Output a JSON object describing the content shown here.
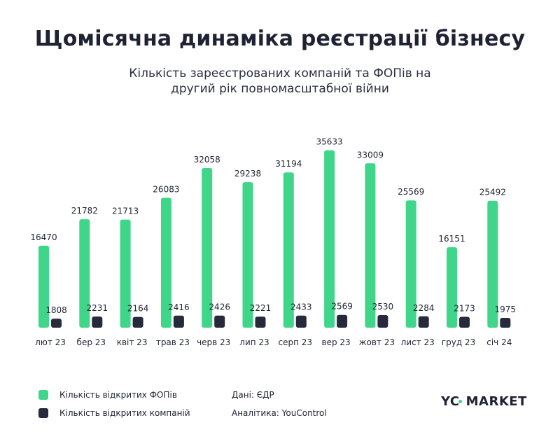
{
  "header": {
    "title": "Щомісячна динаміка реєстрації бізнесу",
    "subtitle_line1": "Кількість зареєстрованих компаній та ФОПів на",
    "subtitle_line2": "другий рік повномасштабної війни"
  },
  "legend": {
    "fop_label": "Кількість відкритих ФОПів",
    "company_label": "Кількість відкритих компаній"
  },
  "sources": {
    "data": "Дані: ЄДР",
    "analytics": "Аналітика: YouControl"
  },
  "logo": {
    "left": "YC",
    "right": "MARKET"
  },
  "colors": {
    "fop": "#3fd68a",
    "company": "#262a3b",
    "text": "#1f2433",
    "brand_dot": "#3fd68a"
  },
  "chart_data": {
    "type": "bar",
    "categories": [
      "лют 23",
      "бер 23",
      "квіт 23",
      "трав 23",
      "черв 23",
      "лип 23",
      "серп 23",
      "вер 23",
      "жовт 23",
      "лист 23",
      "груд 23",
      "січ 24"
    ],
    "series": [
      {
        "name": "Кількість відкритих ФОПів",
        "color": "#3fd68a",
        "values": [
          16470,
          21782,
          21713,
          26083,
          32058,
          29238,
          31194,
          35633,
          33009,
          25569,
          16151,
          25492
        ]
      },
      {
        "name": "Кількість відкритих компаній",
        "color": "#262a3b",
        "values": [
          1808,
          2231,
          2164,
          2416,
          2426,
          2221,
          2433,
          2569,
          2530,
          2284,
          2173,
          1975
        ]
      }
    ],
    "title": "Щомісячна динаміка реєстрації бізнесу",
    "xlabel": "",
    "ylabel": "",
    "ylim": [
      0,
      36000
    ],
    "grid": false,
    "legend_position": "bottom-left",
    "data_labels": true
  }
}
